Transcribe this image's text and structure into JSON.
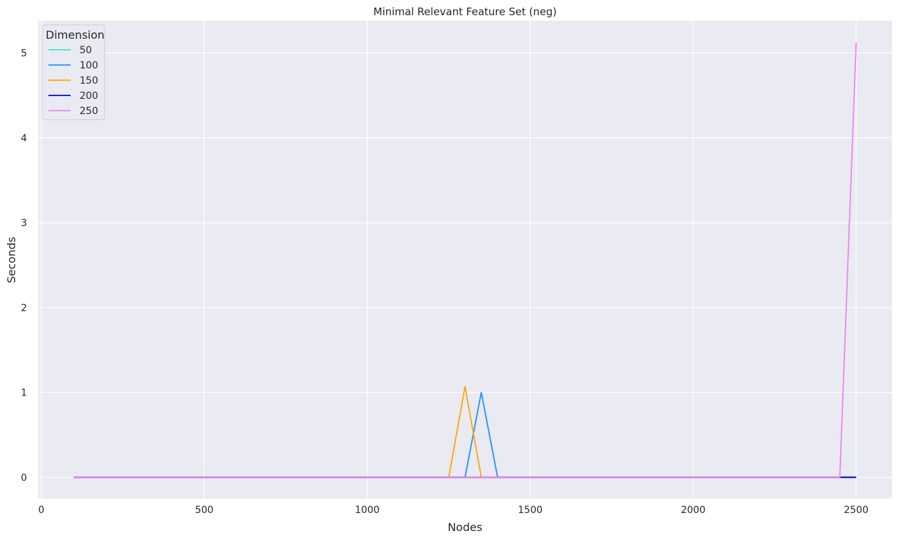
{
  "chart_data": {
    "type": "line",
    "title": "Minimal Relevant Feature Set (neg)",
    "xlabel": "Nodes",
    "ylabel": "Seconds",
    "xlim": [
      -10,
      2610
    ],
    "ylim": [
      -0.25,
      5.38
    ],
    "xticks": [
      "0",
      "500",
      "1000",
      "1500",
      "2000",
      "2500"
    ],
    "yticks": [
      "0",
      "1",
      "2",
      "3",
      "4",
      "5"
    ],
    "grid": true,
    "legend": {
      "title": "Dimension",
      "placement": "top-left"
    },
    "series": [
      {
        "name": "50",
        "color": "#40E0D0",
        "x": [
          100,
          2500
        ],
        "y": [
          0.0,
          0.0
        ]
      },
      {
        "name": "100",
        "color": "#1E90FF",
        "x": [
          100,
          1300,
          1350,
          1400,
          2500
        ],
        "y": [
          0.0,
          0.0,
          1.0,
          0.0,
          0.0
        ]
      },
      {
        "name": "150",
        "color": "#FFA500",
        "x": [
          100,
          1250,
          1300,
          1350,
          2500
        ],
        "y": [
          0.0,
          0.0,
          1.07,
          0.0,
          0.0
        ]
      },
      {
        "name": "200",
        "color": "#0000CD",
        "x": [
          100,
          2500
        ],
        "y": [
          0.0,
          0.0
        ]
      },
      {
        "name": "250",
        "color": "#EE82EE",
        "x": [
          100,
          2450,
          2500
        ],
        "y": [
          0.0,
          0.0,
          5.12
        ]
      }
    ]
  }
}
